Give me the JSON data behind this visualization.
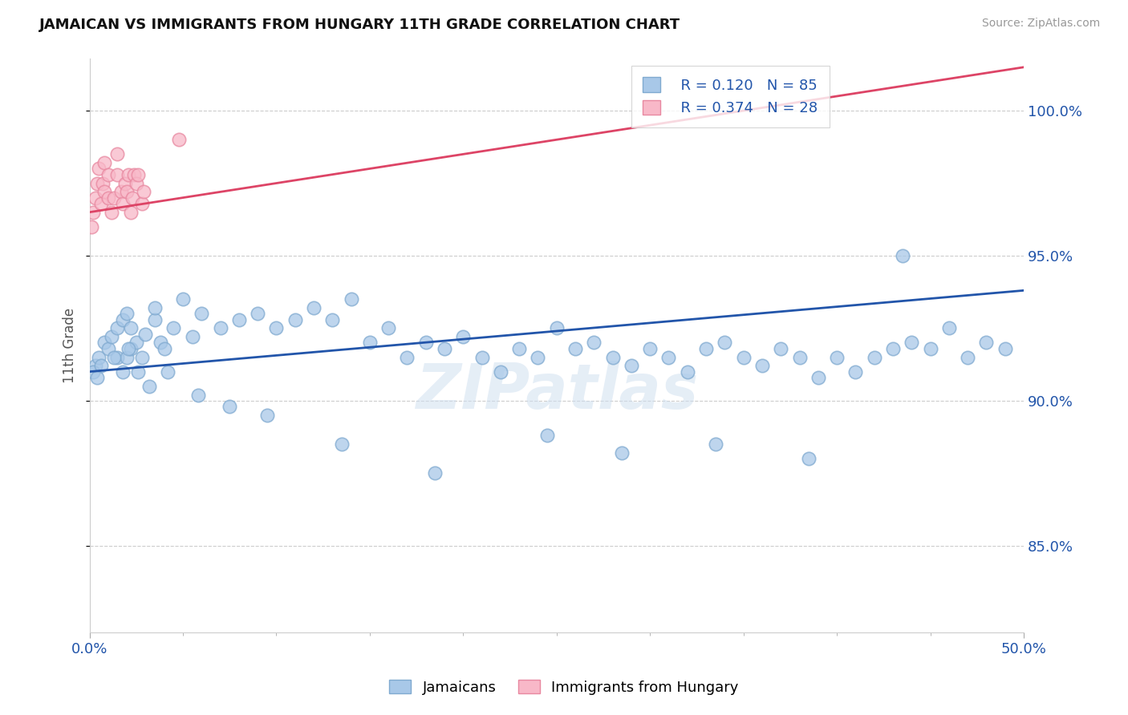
{
  "title": "JAMAICAN VS IMMIGRANTS FROM HUNGARY 11TH GRADE CORRELATION CHART",
  "source_text": "Source: ZipAtlas.com",
  "ylabel": "11th Grade",
  "y_ticks": [
    85.0,
    90.0,
    95.0,
    100.0
  ],
  "y_tick_labels": [
    "85.0%",
    "90.0%",
    "95.0%",
    "100.0%"
  ],
  "watermark": "ZIPatlas",
  "legend_blue_R": "R = 0.120",
  "legend_blue_N": "N = 85",
  "legend_pink_R": "R = 0.374",
  "legend_pink_N": "N = 28",
  "blue_color": "#a8c8e8",
  "blue_edge_color": "#80aad0",
  "pink_color": "#f8b8c8",
  "pink_edge_color": "#e888a0",
  "blue_line_color": "#2255aa",
  "pink_line_color": "#dd4466",
  "legend_text_color": "#2255aa",
  "blue_scatter_x": [
    0.3,
    0.5,
    0.8,
    1.0,
    1.2,
    1.5,
    1.5,
    1.8,
    1.8,
    2.0,
    2.0,
    2.2,
    2.2,
    2.5,
    2.8,
    3.0,
    3.5,
    3.5,
    3.8,
    4.0,
    4.5,
    5.0,
    5.5,
    6.0,
    7.0,
    8.0,
    9.0,
    10.0,
    11.0,
    12.0,
    13.0,
    14.0,
    15.0,
    16.0,
    17.0,
    18.0,
    19.0,
    20.0,
    21.0,
    22.0,
    23.0,
    24.0,
    25.0,
    26.0,
    27.0,
    28.0,
    29.0,
    30.0,
    31.0,
    32.0,
    33.0,
    34.0,
    35.0,
    36.0,
    37.0,
    38.0,
    39.0,
    40.0,
    41.0,
    42.0,
    43.0,
    44.0,
    45.0,
    46.0,
    47.0,
    48.0,
    49.0,
    0.2,
    0.4,
    0.6,
    1.3,
    2.1,
    2.6,
    3.2,
    4.2,
    5.8,
    7.5,
    9.5,
    13.5,
    18.5,
    24.5,
    28.5,
    33.5,
    38.5,
    43.5
  ],
  "blue_scatter_y": [
    91.2,
    91.5,
    92.0,
    91.8,
    92.2,
    91.5,
    92.5,
    91.0,
    92.8,
    91.5,
    93.0,
    91.8,
    92.5,
    92.0,
    91.5,
    92.3,
    92.8,
    93.2,
    92.0,
    91.8,
    92.5,
    93.5,
    92.2,
    93.0,
    92.5,
    92.8,
    93.0,
    92.5,
    92.8,
    93.2,
    92.8,
    93.5,
    92.0,
    92.5,
    91.5,
    92.0,
    91.8,
    92.2,
    91.5,
    91.0,
    91.8,
    91.5,
    92.5,
    91.8,
    92.0,
    91.5,
    91.2,
    91.8,
    91.5,
    91.0,
    91.8,
    92.0,
    91.5,
    91.2,
    91.8,
    91.5,
    90.8,
    91.5,
    91.0,
    91.5,
    91.8,
    92.0,
    91.8,
    92.5,
    91.5,
    92.0,
    91.8,
    91.0,
    90.8,
    91.2,
    91.5,
    91.8,
    91.0,
    90.5,
    91.0,
    90.2,
    89.8,
    89.5,
    88.5,
    87.5,
    88.8,
    88.2,
    88.5,
    88.0,
    95.0
  ],
  "pink_scatter_x": [
    0.2,
    0.3,
    0.4,
    0.5,
    0.6,
    0.7,
    0.8,
    0.8,
    1.0,
    1.0,
    1.2,
    1.3,
    1.5,
    1.5,
    1.7,
    1.8,
    1.9,
    2.0,
    2.1,
    2.2,
    2.3,
    2.4,
    2.5,
    2.6,
    2.8,
    2.9,
    0.1,
    4.8
  ],
  "pink_scatter_y": [
    96.5,
    97.0,
    97.5,
    98.0,
    96.8,
    97.5,
    97.2,
    98.2,
    97.0,
    97.8,
    96.5,
    97.0,
    97.8,
    98.5,
    97.2,
    96.8,
    97.5,
    97.2,
    97.8,
    96.5,
    97.0,
    97.8,
    97.5,
    97.8,
    96.8,
    97.2,
    96.0,
    99.0
  ],
  "xmin": 0.0,
  "xmax": 50.0,
  "ymin": 82.0,
  "ymax": 101.8,
  "blue_trend_x0": 0.0,
  "blue_trend_y0": 91.0,
  "blue_trend_x1": 50.0,
  "blue_trend_y1": 93.8,
  "pink_trend_x0": 0.0,
  "pink_trend_y0": 96.5,
  "pink_trend_x1": 50.0,
  "pink_trend_y1": 101.5
}
